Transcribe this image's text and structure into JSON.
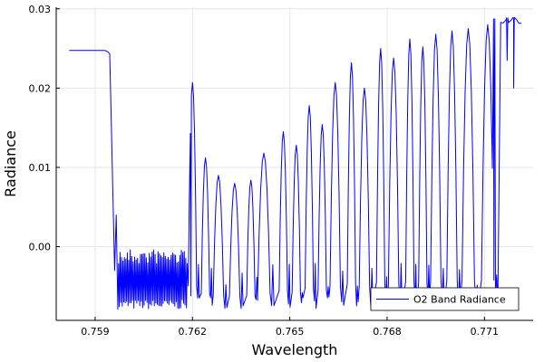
{
  "chart_data": {
    "type": "line",
    "title": "",
    "xlabel": "Wavelength",
    "ylabel": "Radiance",
    "xlim": [
      0.7578,
      0.7725
    ],
    "ylim": [
      -0.0093,
      0.0302
    ],
    "x_ticks": [
      {
        "value": 0.759,
        "label": "0.759"
      },
      {
        "value": 0.762,
        "label": "0.762"
      },
      {
        "value": 0.765,
        "label": "0.765"
      },
      {
        "value": 0.768,
        "label": "0.768"
      },
      {
        "value": 0.771,
        "label": "0.771"
      }
    ],
    "y_ticks": [
      {
        "value": 0.0,
        "label": "0.00"
      },
      {
        "value": 0.01,
        "label": "0.01"
      },
      {
        "value": 0.02,
        "label": "0.02"
      },
      {
        "value": 0.03,
        "label": "0.03"
      }
    ],
    "grid": true,
    "legend_position": "bottom-right",
    "series": [
      {
        "name": "O2 Band Radiance",
        "color": "#0000ff",
        "x_range": [
          0.7582,
          0.7722
        ],
        "continuum_start": 0.02475,
        "continuum_end": 0.029,
        "floor": -0.0078,
        "band_edge": 0.7596,
        "r_branch_end": 0.762,
        "r_branch_noise": [
          -0.0079,
          -0.0003
        ],
        "p_branch_peaks": [
          {
            "x": 0.762,
            "y": 0.0207
          },
          {
            "x": 0.7624,
            "y": 0.0112
          },
          {
            "x": 0.7628,
            "y": 0.009
          },
          {
            "x": 0.7633,
            "y": 0.008
          },
          {
            "x": 0.7638,
            "y": 0.0084
          },
          {
            "x": 0.7642,
            "y": 0.0118
          },
          {
            "x": 0.7648,
            "y": 0.0145
          },
          {
            "x": 0.7652,
            "y": 0.0128
          },
          {
            "x": 0.7656,
            "y": 0.0178
          },
          {
            "x": 0.766,
            "y": 0.0154
          },
          {
            "x": 0.7664,
            "y": 0.0207
          },
          {
            "x": 0.7669,
            "y": 0.0232
          },
          {
            "x": 0.7673,
            "y": 0.02
          },
          {
            "x": 0.7678,
            "y": 0.025
          },
          {
            "x": 0.7682,
            "y": 0.0238
          },
          {
            "x": 0.7687,
            "y": 0.0262
          },
          {
            "x": 0.7691,
            "y": 0.0252
          },
          {
            "x": 0.7695,
            "y": 0.0268
          },
          {
            "x": 0.77,
            "y": 0.0272
          },
          {
            "x": 0.7705,
            "y": 0.0275
          },
          {
            "x": 0.7711,
            "y": 0.028
          }
        ],
        "dips": [
          {
            "x": 0.7679,
            "y": -0.0078
          },
          {
            "x": 0.7682,
            "y": -0.0078
          },
          {
            "x": 0.7689,
            "y": -0.006
          },
          {
            "x": 0.7698,
            "y": -0.004
          },
          {
            "x": 0.7706,
            "y": 0.0055
          },
          {
            "x": 0.7707,
            "y": 0.0025
          },
          {
            "x": 0.7713,
            "y": 0.0175
          },
          {
            "x": 0.7717,
            "y": 0.0235
          },
          {
            "x": 0.7719,
            "y": 0.02
          }
        ]
      }
    ]
  }
}
